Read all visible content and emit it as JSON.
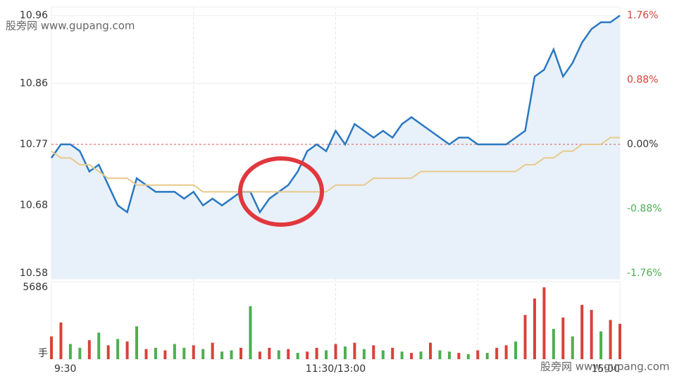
{
  "chart_data": [
    {
      "type": "line",
      "categories": [
        "9:30",
        null,
        null,
        null,
        null,
        null,
        null,
        null,
        null,
        null,
        null,
        null,
        null,
        null,
        null,
        null,
        null,
        null,
        null,
        null,
        null,
        null,
        null,
        null,
        null,
        null,
        null,
        null,
        null,
        null,
        "11:30/13:00",
        null,
        null,
        null,
        null,
        null,
        null,
        null,
        null,
        null,
        null,
        null,
        null,
        null,
        null,
        null,
        null,
        null,
        null,
        null,
        null,
        null,
        null,
        null,
        null,
        null,
        null,
        null,
        null,
        null,
        "15:00"
      ],
      "series": [
        {
          "color": "#2a78c2",
          "values": [
            10.75,
            10.77,
            10.77,
            10.76,
            10.73,
            10.74,
            10.71,
            10.68,
            10.67,
            10.72,
            10.71,
            10.7,
            10.7,
            10.7,
            10.69,
            10.7,
            10.68,
            10.69,
            10.68,
            10.69,
            10.7,
            10.7,
            10.67,
            10.69,
            10.7,
            10.71,
            10.73,
            10.76,
            10.77,
            10.76,
            10.79,
            10.77,
            10.8,
            10.79,
            10.78,
            10.79,
            10.78,
            10.8,
            10.81,
            10.8,
            10.79,
            10.78,
            10.77,
            10.78,
            10.78,
            10.77,
            10.77,
            10.77,
            10.77,
            10.78,
            10.79,
            10.87,
            10.88,
            10.91,
            10.87,
            10.89,
            10.92,
            10.94,
            10.95,
            10.95,
            10.96
          ]
        },
        {
          "color": "#e8c98a",
          "values": [
            10.76,
            10.75,
            10.75,
            10.74,
            10.74,
            10.73,
            10.72,
            10.72,
            10.72,
            10.71,
            10.71,
            10.71,
            10.71,
            10.71,
            10.71,
            10.71,
            10.7,
            10.7,
            10.7,
            10.7,
            10.7,
            10.7,
            10.7,
            10.7,
            10.7,
            10.7,
            10.7,
            10.7,
            10.7,
            10.7,
            10.71,
            10.71,
            10.71,
            10.71,
            10.72,
            10.72,
            10.72,
            10.72,
            10.72,
            10.73,
            10.73,
            10.73,
            10.73,
            10.73,
            10.73,
            10.73,
            10.73,
            10.73,
            10.73,
            10.73,
            10.74,
            10.74,
            10.75,
            10.75,
            10.76,
            10.76,
            10.77,
            10.77,
            10.77,
            10.78,
            10.78
          ]
        }
      ],
      "prev_close": 10.77,
      "ylim": [
        10.58,
        10.96
      ],
      "yticks": [
        10.58,
        10.68,
        10.77,
        10.86,
        10.96
      ],
      "y2lim": [
        -1.76,
        1.76
      ],
      "y2ticks": [
        {
          "value": -1.76,
          "label": "-1.76%"
        },
        {
          "value": -0.88,
          "label": "-0.88%"
        },
        {
          "value": 0,
          "label": "0.00%"
        },
        {
          "value": 0.88,
          "label": "0.88%"
        },
        {
          "value": 1.76,
          "label": "1.76%"
        }
      ],
      "grid": true
    },
    {
      "type": "bar",
      "unit": "手",
      "ylim": [
        0,
        5686
      ],
      "yticks": [
        5686
      ],
      "values": [
        1800,
        2900,
        1200,
        900,
        1500,
        2100,
        1100,
        1600,
        1400,
        2600,
        800,
        900,
        700,
        1200,
        900,
        1100,
        800,
        1300,
        600,
        700,
        900,
        4200,
        600,
        900,
        700,
        800,
        500,
        600,
        900,
        700,
        1200,
        1000,
        1300,
        800,
        1100,
        700,
        900,
        600,
        500,
        600,
        1300,
        700,
        600,
        500,
        400,
        700,
        500,
        900,
        1100,
        1400,
        3500,
        4800,
        5686,
        2400,
        3300,
        1800,
        4300,
        3900,
        2200,
        3100,
        2800
      ],
      "colors": [
        "#d9413a",
        "#d9413a",
        "#4caf50",
        "#4caf50",
        "#d9413a",
        "#4caf50",
        "#d9413a",
        "#4caf50",
        "#d9413a",
        "#4caf50",
        "#d9413a",
        "#4caf50",
        "#d9413a",
        "#4caf50",
        "#4caf50",
        "#d9413a",
        "#4caf50",
        "#d9413a",
        "#4caf50",
        "#4caf50",
        "#d9413a",
        "#4caf50",
        "#d9413a",
        "#d9413a",
        "#4caf50",
        "#d9413a",
        "#4caf50",
        "#d9413a",
        "#d9413a",
        "#4caf50",
        "#d9413a",
        "#4caf50",
        "#d9413a",
        "#4caf50",
        "#d9413a",
        "#4caf50",
        "#d9413a",
        "#4caf50",
        "#d9413a",
        "#4caf50",
        "#d9413a",
        "#4caf50",
        "#4caf50",
        "#d9413a",
        "#4caf50",
        "#d9413a",
        "#4caf50",
        "#d9413a",
        "#d9413a",
        "#4caf50",
        "#d9413a",
        "#d9413a",
        "#d9413a",
        "#4caf50",
        "#d9413a",
        "#4caf50",
        "#d9413a",
        "#d9413a",
        "#4caf50",
        "#d9413a",
        "#d9413a"
      ]
    }
  ],
  "watermarks": [
    "股旁网 www.gupang.com",
    "股旁网 www.gupang.com"
  ]
}
